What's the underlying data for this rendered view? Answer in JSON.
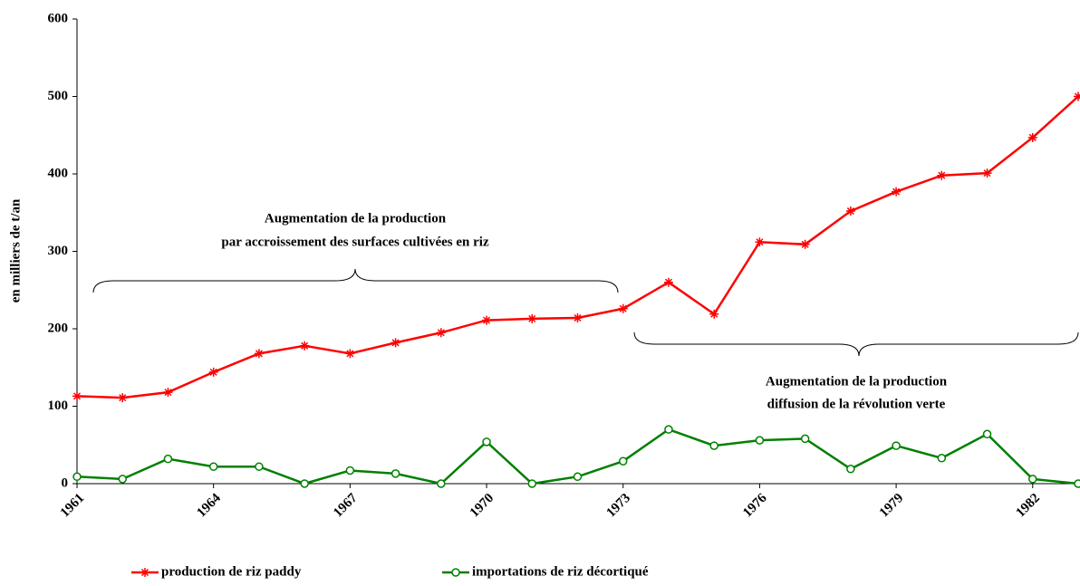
{
  "chart_data": {
    "type": "line",
    "y_label": "en milliers de t/an",
    "x": [
      1961,
      1962,
      1963,
      1964,
      1965,
      1966,
      1967,
      1968,
      1969,
      1970,
      1971,
      1972,
      1973,
      1974,
      1975,
      1976,
      1977,
      1978,
      1979,
      1980,
      1981,
      1982,
      1983
    ],
    "xlim": [
      1961,
      1983
    ],
    "xticks": [
      1961,
      1964,
      1967,
      1970,
      1973,
      1976,
      1979,
      1982
    ],
    "ylim": [
      0,
      600
    ],
    "yticks": [
      0,
      100,
      200,
      300,
      400,
      500,
      600
    ],
    "grid": false,
    "legend": "bottom",
    "series": [
      {
        "name": "production de riz paddy",
        "color": "#ff0000",
        "marker": "asterisk",
        "values": [
          113,
          111,
          118,
          144,
          168,
          178,
          168,
          182,
          195,
          211,
          213,
          214,
          226,
          260,
          219,
          312,
          309,
          352,
          377,
          398,
          401,
          447,
          500
        ]
      },
      {
        "name": "importations de riz décortiqué",
        "color": "#008000",
        "marker": "circle",
        "values": [
          9,
          6,
          32,
          22,
          22,
          0,
          17,
          13,
          0,
          54,
          0,
          9,
          29,
          70,
          49,
          56,
          58,
          19,
          49,
          33,
          64,
          6,
          0
        ]
      }
    ],
    "annotations": [
      {
        "lines": [
          "Augmentation de la production",
          "par accroissement des surfaces cultivées en riz"
        ]
      },
      {
        "lines": [
          "Augmentation de la production",
          "diffusion de la révolution verte"
        ]
      }
    ]
  }
}
